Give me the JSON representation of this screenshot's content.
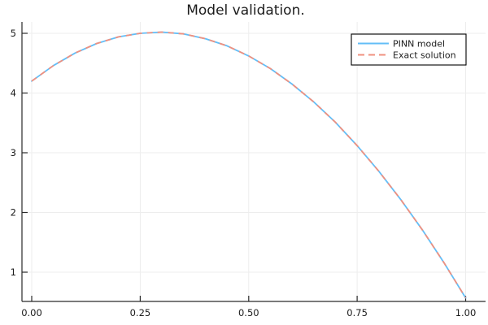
{
  "window": {
    "background": "#ffffff"
  },
  "chart_data": {
    "type": "line",
    "title": "Model validation.",
    "xlabel": "",
    "ylabel": "",
    "xlim": [
      -0.022,
      1.045
    ],
    "ylim": [
      0.5,
      5.2
    ],
    "grid": true,
    "legend_position": "top-right",
    "xtick_labels": [
      "0.00",
      "0.25",
      "0.50",
      "0.75",
      "1.00"
    ],
    "xtick_values": [
      0,
      0.25,
      0.5,
      0.75,
      1.0
    ],
    "ytick_labels": [
      "1",
      "2",
      "3",
      "4",
      "5"
    ],
    "ytick_values": [
      1,
      2,
      3,
      4,
      5
    ],
    "x": [
      0,
      0.05,
      0.1,
      0.15,
      0.2,
      0.25,
      0.3,
      0.35,
      0.4,
      0.45,
      0.5,
      0.55,
      0.6,
      0.65,
      0.7,
      0.75,
      0.8,
      0.85,
      0.9,
      0.95,
      1.0
    ],
    "series": [
      {
        "name": "PINN model",
        "color": "#63BEF7",
        "style": "solid",
        "values": [
          4.2,
          4.46,
          4.67,
          4.83,
          4.94,
          5.0,
          5.02,
          4.99,
          4.91,
          4.79,
          4.62,
          4.41,
          4.15,
          3.85,
          3.51,
          3.12,
          2.69,
          2.22,
          1.71,
          1.16,
          0.57
        ]
      },
      {
        "name": "Exact solution",
        "color": "#F0907F",
        "style": "dashed",
        "values": [
          4.2,
          4.46,
          4.67,
          4.83,
          4.94,
          5.0,
          5.02,
          4.99,
          4.91,
          4.79,
          4.62,
          4.41,
          4.15,
          3.85,
          3.51,
          3.12,
          2.69,
          2.22,
          1.71,
          1.16,
          0.57
        ]
      }
    ],
    "axis_color": "#2a2a2a",
    "grid_color": "#ededed",
    "legend_border_color": "#000000",
    "legend_background": "#ffffff"
  }
}
